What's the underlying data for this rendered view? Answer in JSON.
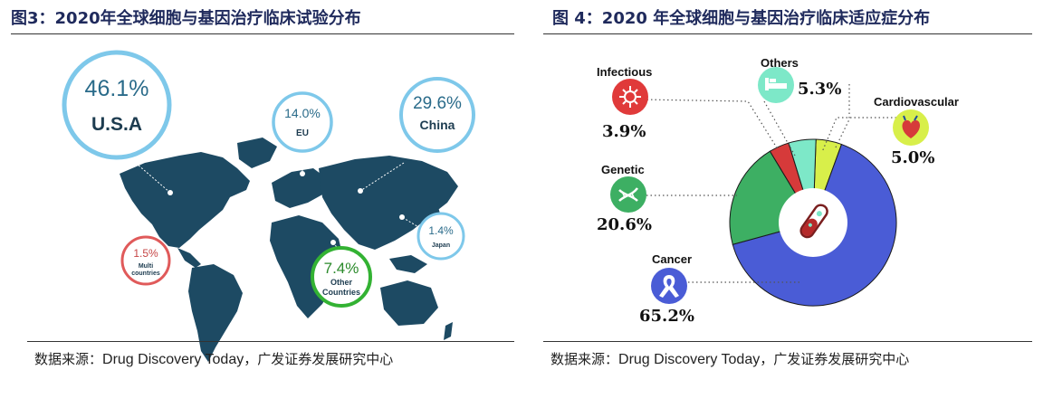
{
  "left": {
    "title": "图3：2020年全球细胞与基因治疗临床试验分布",
    "source_prefix": "数据来源：",
    "source_en": "Drug Discovery Today",
    "source_suffix": "，广发证券发展研究中心",
    "colors": {
      "map": "#1d4a63",
      "blue_bubble": "#7ec8ea",
      "green_bubble": "#33b233",
      "red_bubble": "#e05a5a"
    },
    "chart_data": {
      "type": "table",
      "title": "2020年全球细胞与基因治疗临床试验分布",
      "categories": [
        "U.S.A",
        "China",
        "EU",
        "Japan",
        "Multi countries",
        "Other Countries"
      ],
      "values": [
        46.1,
        29.6,
        14.0,
        1.4,
        1.5,
        7.4
      ],
      "value_labels": [
        "46.1%",
        "29.6%",
        "14.0%",
        "1.4%",
        "1.5%",
        "7.4%"
      ],
      "region_labels": [
        "U.S.A",
        "China",
        "EU",
        "Japan",
        "Multi",
        "countries",
        "Other",
        "Countries"
      ]
    }
  },
  "right": {
    "title": "图 4：2020 年全球细胞与基因治疗临床适应症分布",
    "source_prefix": "数据来源：",
    "source_en": "Drug Discovery Today",
    "source_suffix": "，广发证券发展研究中心",
    "chart_data": {
      "type": "pie",
      "title": "2020 年全球细胞与基因治疗临床适应症分布",
      "categories": [
        "Cancer",
        "Genetic",
        "Infectious",
        "Others",
        "Cardiovascular"
      ],
      "values": [
        65.2,
        20.6,
        3.9,
        5.3,
        5.0
      ],
      "value_labels": [
        "65.2%",
        "20.6%",
        "3.9%",
        "5.3%",
        "5.0%"
      ],
      "colors": [
        "#4a5cd6",
        "#3daf63",
        "#d63a3a",
        "#7de8c8",
        "#d8ef4a"
      ],
      "icons": [
        "ribbon-icon",
        "dna-icon",
        "virus-icon",
        "hospital-bed-icon",
        "heart-icon"
      ]
    }
  }
}
